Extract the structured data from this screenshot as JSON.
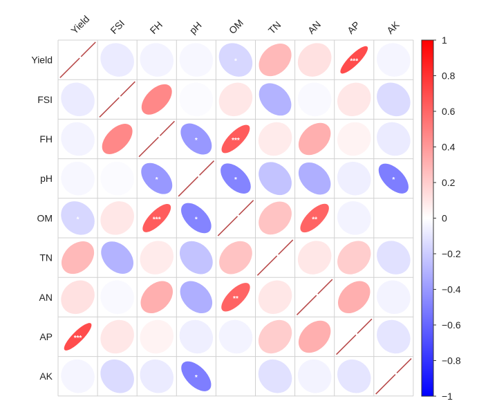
{
  "chart_data": {
    "type": "heatmap",
    "subtype": "correlation-ellipse-matrix",
    "title": "",
    "variables": [
      "Yield",
      "FSI",
      "FH",
      "pH",
      "OM",
      "TN",
      "AN",
      "AP",
      "AK"
    ],
    "matrix": [
      [
        1.0,
        -0.1,
        -0.06,
        -0.04,
        -0.2,
        0.35,
        0.15,
        0.9,
        -0.05
      ],
      [
        -0.1,
        1.0,
        0.6,
        -0.02,
        0.12,
        -0.38,
        -0.03,
        0.12,
        -0.18
      ],
      [
        -0.06,
        0.6,
        1.0,
        -0.52,
        0.82,
        0.1,
        0.4,
        0.06,
        -0.1
      ],
      [
        -0.04,
        -0.02,
        -0.52,
        1.0,
        -0.62,
        -0.3,
        -0.4,
        -0.08,
        -0.65
      ],
      [
        -0.2,
        0.12,
        0.82,
        -0.62,
        1.0,
        0.3,
        0.78,
        -0.06,
        0.0
      ],
      [
        0.35,
        -0.38,
        0.1,
        -0.3,
        0.3,
        1.0,
        0.12,
        0.25,
        -0.15
      ],
      [
        0.15,
        -0.03,
        0.4,
        -0.4,
        0.78,
        0.12,
        1.0,
        0.4,
        -0.06
      ],
      [
        0.9,
        0.12,
        0.06,
        -0.08,
        -0.06,
        0.25,
        0.4,
        1.0,
        -0.13
      ],
      [
        -0.05,
        -0.18,
        -0.1,
        -0.65,
        0.0,
        -0.15,
        -0.06,
        -0.13,
        1.0
      ]
    ],
    "significance": [
      [
        "",
        "",
        "",
        "",
        "*",
        "",
        "",
        "***",
        ""
      ],
      [
        "",
        "",
        "",
        "",
        "",
        "",
        "",
        "",
        ""
      ],
      [
        "",
        "",
        "",
        "*",
        "***",
        "",
        "",
        "",
        ""
      ],
      [
        "",
        "",
        "*",
        "",
        "*",
        "",
        "",
        "",
        "*"
      ],
      [
        "*",
        "",
        "***",
        "*",
        "",
        "",
        "**",
        "",
        ""
      ],
      [
        "",
        "",
        "",
        "",
        "",
        "",
        "",
        "",
        ""
      ],
      [
        "",
        "",
        "",
        "",
        "**",
        "",
        "",
        "",
        ""
      ],
      [
        "***",
        "",
        "",
        "",
        "",
        "",
        "",
        "",
        ""
      ],
      [
        "",
        "",
        "",
        "*",
        "",
        "",
        "",
        "",
        ""
      ]
    ],
    "colorbar": {
      "range": [
        -1,
        1
      ],
      "ticks": [
        "1",
        "0.8",
        "0.6",
        "0.4",
        "0.2",
        "0",
        "−0.2",
        "−0.4",
        "−0.6",
        "−0.8",
        "−1"
      ],
      "tick_values": [
        1,
        0.8,
        0.6,
        0.4,
        0.2,
        0,
        -0.2,
        -0.4,
        -0.6,
        -0.8,
        -1
      ],
      "low_color": "#0000ff",
      "mid_color": "#ffffff",
      "high_color": "#ff0000",
      "placement": "right"
    },
    "diagonal_style": "line",
    "diagonal_color": "#b84a4a",
    "grid": true,
    "legend": "colorbar-right"
  }
}
